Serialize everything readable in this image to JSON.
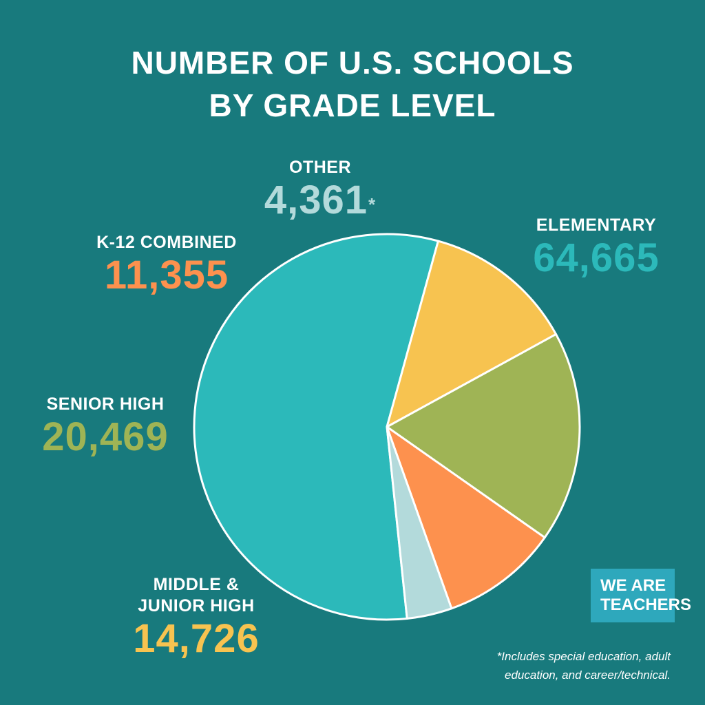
{
  "title": {
    "line1": "NUMBER OF U.S. SCHOOLS",
    "line2": "BY GRADE LEVEL"
  },
  "chart_data": {
    "type": "pie",
    "title": "NUMBER OF U.S. SCHOOLS BY GRADE LEVEL",
    "start_angle_deg": 174,
    "direction": "clockwise",
    "slice_stroke_color": "#ffffff",
    "slices": [
      {
        "label": "ELEMENTARY",
        "value": 64665,
        "display_value": "64,665",
        "color": "#2cb9ba"
      },
      {
        "label": "MIDDLE & JUNIOR HIGH",
        "label_lines": [
          "MIDDLE &",
          "JUNIOR HIGH"
        ],
        "value": 14726,
        "display_value": "14,726",
        "color": "#f7c350"
      },
      {
        "label": "SENIOR HIGH",
        "value": 20469,
        "display_value": "20,469",
        "color": "#9fb455"
      },
      {
        "label": "K-12 COMBINED",
        "value": 11355,
        "display_value": "11,355",
        "color": "#fd914e"
      },
      {
        "label": "OTHER",
        "value": 4361,
        "display_value": "4,361",
        "footnote_mark": "*",
        "color": "#b3dadb"
      }
    ]
  },
  "footnote": {
    "line1": "*Includes special education, adult",
    "line2": "education, and career/technical."
  },
  "logo": {
    "line1": "WE ARE",
    "line2": "TEACHERS",
    "color": "#2ea8bc"
  },
  "colors": {
    "background": "#187a7d",
    "text": "#ffffff"
  }
}
